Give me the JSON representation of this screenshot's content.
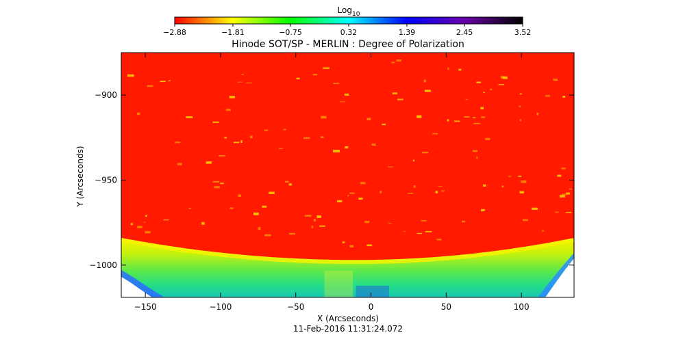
{
  "chart_data": {
    "type": "heatmap",
    "title": "Hinode SOT/SP - MERLIN : Degree of Polarization",
    "xlabel": "X (Arcseconds)",
    "ylabel": "Y (Arcseconds)",
    "timestamp": "11-Feb-2016 11:31:24.072",
    "xlim": [
      -166,
      135
    ],
    "ylim": [
      -1019,
      -875
    ],
    "x_ticks": [
      -150,
      -100,
      -50,
      0,
      50,
      100
    ],
    "y_ticks": [
      -900,
      -950,
      -1000
    ],
    "x_tick_labels": [
      "−150",
      "−100",
      "−50",
      "0",
      "50",
      "100"
    ],
    "y_tick_labels": [
      "−900",
      "−950",
      "−1000"
    ],
    "colorbar": {
      "label_base": "Log",
      "label_sub": "10",
      "tick_values": [
        -2.88,
        -1.81,
        -0.75,
        0.32,
        1.39,
        2.45,
        3.52
      ],
      "tick_labels": [
        "−2.88",
        "−1.81",
        "−0.75",
        "0.32",
        "1.39",
        "2.45",
        "3.52"
      ],
      "range": [
        -2.88,
        3.52
      ],
      "colors": [
        "#ff0000",
        "#ffff00",
        "#00ff00",
        "#00ffff",
        "#0000ff",
        "#6a00a8",
        "#000000"
      ]
    },
    "regions": {
      "on_disk_value": -2.88,
      "limb_y_center": -997,
      "limb_y_edges": -984,
      "off_limb_gradient": [
        {
          "depth": 0,
          "color": "#f5f400"
        },
        {
          "depth": 0.25,
          "color": "#c8f20a"
        },
        {
          "depth": 0.55,
          "color": "#5fe84a"
        },
        {
          "depth": 0.8,
          "color": "#22dd88"
        },
        {
          "depth": 1,
          "color": "#19c8b0"
        }
      ],
      "no_data_color": "#ffffff",
      "disk_color": "#ff1a00",
      "network_color": "#ffcc00"
    }
  }
}
